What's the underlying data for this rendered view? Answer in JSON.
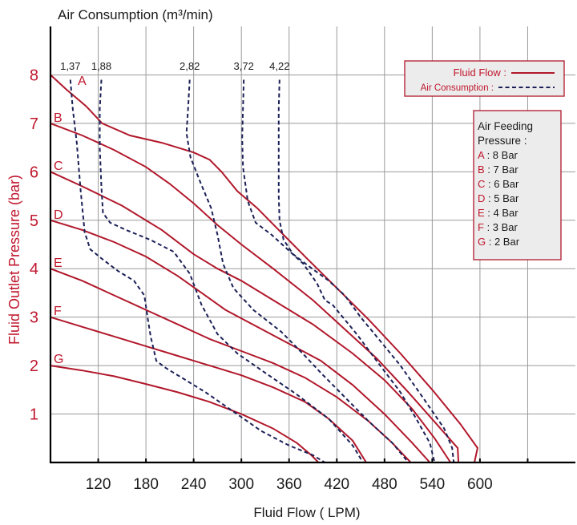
{
  "chart_data": {
    "type": "line",
    "title": "Air Consumption (m³/min)",
    "xlabel": "Fluid Flow ( LPM)",
    "ylabel": "Fluid Outlet Pressure (bar)",
    "xlim": [
      60,
      720
    ],
    "ylim": [
      0,
      9
    ],
    "x_ticks": [
      "120",
      "180",
      "240",
      "300",
      "360",
      "420",
      "480",
      "540",
      "600"
    ],
    "y_ticks": [
      "1",
      "2",
      "3",
      "4",
      "5",
      "6",
      "7",
      "8"
    ],
    "grid": true,
    "legend": {
      "position": "top-right",
      "fluid_label": "Fluid Flow :",
      "air_label": "Air Consumption :"
    },
    "pressure_box": {
      "title": [
        "Air Feeding",
        "Pressure :"
      ],
      "items": [
        {
          "letter": "A",
          "text": " : 8 Bar"
        },
        {
          "letter": "B",
          "text": " : 7 Bar"
        },
        {
          "letter": "C",
          "text": " : 6 Bar"
        },
        {
          "letter": "D",
          "text": " : 5 Bar"
        },
        {
          "letter": "E",
          "text": " : 4 Bar"
        },
        {
          "letter": "F",
          "text": " : 3 Bar"
        },
        {
          "letter": "G",
          "text": " : 2 Bar"
        }
      ]
    },
    "fluid_series": [
      {
        "label": "A",
        "points": [
          [
            60,
            8
          ],
          [
            80,
            7.7
          ],
          [
            105,
            7.35
          ],
          [
            125,
            7.0
          ],
          [
            160,
            6.75
          ],
          [
            200,
            6.6
          ],
          [
            240,
            6.4
          ],
          [
            260,
            6.25
          ],
          [
            275,
            6.0
          ],
          [
            295,
            5.6
          ],
          [
            320,
            5.25
          ],
          [
            350,
            4.75
          ],
          [
            380,
            4.25
          ],
          [
            420,
            3.6
          ],
          [
            460,
            2.95
          ],
          [
            500,
            2.25
          ],
          [
            540,
            1.5
          ],
          [
            575,
            0.8
          ],
          [
            597,
            0.3
          ],
          [
            593,
            0
          ]
        ]
      },
      {
        "label": "B",
        "points": [
          [
            60,
            7
          ],
          [
            100,
            6.75
          ],
          [
            140,
            6.45
          ],
          [
            180,
            6.1
          ],
          [
            210,
            5.75
          ],
          [
            240,
            5.35
          ],
          [
            270,
            4.9
          ],
          [
            300,
            4.5
          ],
          [
            340,
            4.0
          ],
          [
            390,
            3.35
          ],
          [
            430,
            2.75
          ],
          [
            470,
            2.15
          ],
          [
            510,
            1.45
          ],
          [
            545,
            0.8
          ],
          [
            572,
            0.3
          ],
          [
            573,
            0
          ]
        ]
      },
      {
        "label": "C",
        "points": [
          [
            60,
            6
          ],
          [
            100,
            5.7
          ],
          [
            150,
            5.3
          ],
          [
            200,
            4.8
          ],
          [
            240,
            4.3
          ],
          [
            270,
            4.0
          ],
          [
            300,
            3.75
          ],
          [
            340,
            3.35
          ],
          [
            390,
            2.85
          ],
          [
            440,
            2.25
          ],
          [
            480,
            1.7
          ],
          [
            515,
            1.1
          ],
          [
            543,
            0.5
          ],
          [
            563,
            0
          ]
        ]
      },
      {
        "label": "D",
        "points": [
          [
            60,
            5
          ],
          [
            100,
            4.8
          ],
          [
            140,
            4.55
          ],
          [
            180,
            4.25
          ],
          [
            220,
            3.85
          ],
          [
            250,
            3.5
          ],
          [
            280,
            3.15
          ],
          [
            320,
            2.8
          ],
          [
            360,
            2.45
          ],
          [
            400,
            2.1
          ],
          [
            440,
            1.6
          ],
          [
            480,
            1.0
          ],
          [
            515,
            0.4
          ],
          [
            537,
            0
          ]
        ]
      },
      {
        "label": "E",
        "points": [
          [
            60,
            4
          ],
          [
            100,
            3.75
          ],
          [
            140,
            3.45
          ],
          [
            180,
            3.15
          ],
          [
            220,
            2.85
          ],
          [
            260,
            2.55
          ],
          [
            300,
            2.3
          ],
          [
            340,
            2.05
          ],
          [
            380,
            1.75
          ],
          [
            420,
            1.35
          ],
          [
            460,
            0.85
          ],
          [
            490,
            0.4
          ],
          [
            513,
            0
          ]
        ]
      },
      {
        "label": "F",
        "points": [
          [
            60,
            3
          ],
          [
            100,
            2.8
          ],
          [
            140,
            2.6
          ],
          [
            180,
            2.4
          ],
          [
            220,
            2.2
          ],
          [
            260,
            2.0
          ],
          [
            300,
            1.8
          ],
          [
            340,
            1.55
          ],
          [
            380,
            1.25
          ],
          [
            410,
            0.9
          ],
          [
            440,
            0.45
          ],
          [
            457,
            0
          ]
        ]
      },
      {
        "label": "G",
        "points": [
          [
            60,
            2
          ],
          [
            100,
            1.9
          ],
          [
            140,
            1.78
          ],
          [
            180,
            1.62
          ],
          [
            220,
            1.45
          ],
          [
            260,
            1.25
          ],
          [
            300,
            1.0
          ],
          [
            340,
            0.7
          ],
          [
            370,
            0.4
          ],
          [
            388,
            0.15
          ],
          [
            397,
            0
          ]
        ]
      }
    ],
    "air_series": [
      {
        "label": "1,37",
        "points": [
          [
            85,
            7.9
          ],
          [
            88,
            7.3
          ],
          [
            93,
            6.6
          ],
          [
            98,
            5.6
          ],
          [
            103,
            4.75
          ],
          [
            110,
            4.4
          ],
          [
            125,
            4.2
          ],
          [
            145,
            3.95
          ],
          [
            165,
            3.75
          ],
          [
            178,
            3.45
          ],
          [
            182,
            3.0
          ],
          [
            186,
            2.6
          ],
          [
            193,
            2.1
          ],
          [
            205,
            1.95
          ],
          [
            225,
            1.75
          ],
          [
            255,
            1.45
          ],
          [
            290,
            1.05
          ],
          [
            325,
            0.65
          ],
          [
            360,
            0.35
          ],
          [
            390,
            0.15
          ],
          [
            405,
            0
          ]
        ]
      },
      {
        "label": "1,88",
        "points": [
          [
            124,
            7.9
          ],
          [
            122,
            7.3
          ],
          [
            122,
            6.5
          ],
          [
            124,
            5.7
          ],
          [
            126,
            5.15
          ],
          [
            135,
            4.95
          ],
          [
            155,
            4.8
          ],
          [
            185,
            4.6
          ],
          [
            215,
            4.35
          ],
          [
            235,
            3.9
          ],
          [
            250,
            3.25
          ],
          [
            270,
            2.65
          ],
          [
            295,
            2.25
          ],
          [
            330,
            1.85
          ],
          [
            370,
            1.4
          ],
          [
            410,
            0.9
          ],
          [
            440,
            0.35
          ],
          [
            453,
            0
          ]
        ]
      },
      {
        "label": "2,82",
        "points": [
          [
            235,
            7.9
          ],
          [
            233,
            7.3
          ],
          [
            231,
            6.8
          ],
          [
            236,
            6.3
          ],
          [
            248,
            5.8
          ],
          [
            262,
            5.25
          ],
          [
            270,
            4.7
          ],
          [
            277,
            4.1
          ],
          [
            290,
            3.6
          ],
          [
            315,
            3.15
          ],
          [
            350,
            2.7
          ],
          [
            380,
            2.2
          ],
          [
            400,
            1.85
          ],
          [
            430,
            1.35
          ],
          [
            460,
            0.85
          ],
          [
            490,
            0.4
          ],
          [
            510,
            0
          ]
        ]
      },
      {
        "label": "3,72",
        "points": [
          [
            303,
            7.9
          ],
          [
            302,
            7.3
          ],
          [
            301,
            6.7
          ],
          [
            302,
            6.1
          ],
          [
            308,
            5.4
          ],
          [
            318,
            4.95
          ],
          [
            338,
            4.7
          ],
          [
            358,
            4.4
          ],
          [
            378,
            4.1
          ],
          [
            395,
            3.7
          ],
          [
            405,
            3.35
          ],
          [
            415,
            3.25
          ],
          [
            425,
            3.05
          ],
          [
            445,
            2.65
          ],
          [
            470,
            2.1
          ],
          [
            500,
            1.45
          ],
          [
            520,
            0.9
          ],
          [
            537,
            0.4
          ],
          [
            543,
            0
          ]
        ]
      },
      {
        "label": "4,22",
        "points": [
          [
            348,
            7.9
          ],
          [
            347,
            7.3
          ],
          [
            347,
            6.6
          ],
          [
            347,
            6.0
          ],
          [
            347,
            5.5
          ],
          [
            348,
            5.0
          ],
          [
            353,
            4.6
          ],
          [
            365,
            4.3
          ],
          [
            385,
            4.05
          ],
          [
            410,
            3.75
          ],
          [
            430,
            3.45
          ],
          [
            450,
            3.0
          ],
          [
            470,
            2.6
          ],
          [
            500,
            2.0
          ],
          [
            530,
            1.3
          ],
          [
            555,
            0.7
          ],
          [
            565,
            0.3
          ],
          [
            567,
            0
          ]
        ]
      }
    ]
  }
}
